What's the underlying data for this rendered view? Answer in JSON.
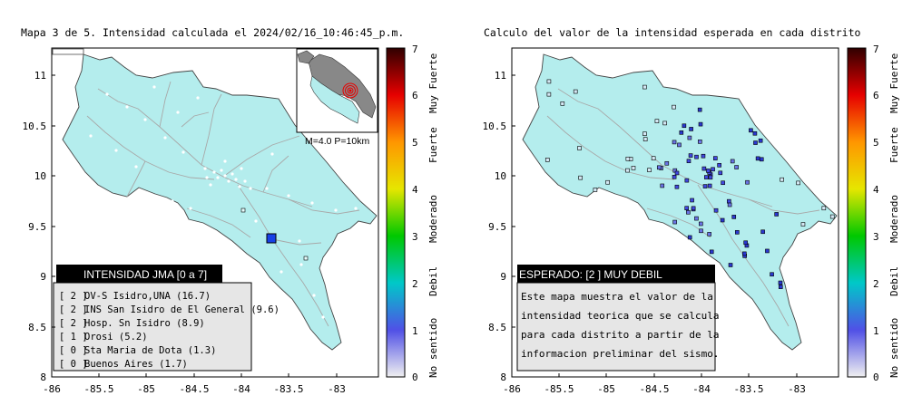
{
  "left_panel": {
    "title": "Mapa 3 de 5. Intensidad calculada el 2024/02/16_10:46:45_p.m.",
    "inset_caption": "M=4.0 P=10km",
    "legend": {
      "header": "INTENSIDAD JMA [0 a 7]",
      "rows": [
        {
          "value": "[ 2 ]",
          "station": "OV-S Isidro,UNA (16.7)"
        },
        {
          "value": "[ 2 ]",
          "station": "INS San Isidro de El General (9.6)"
        },
        {
          "value": "[ 2 ]",
          "station": "Hosp. Sn Isidro (8.9)"
        },
        {
          "value": "[ 1 ]",
          "station": "Orosi (5.2)"
        },
        {
          "value": "[ 0 ]",
          "station": "Sta Maria de Dota (1.3)"
        },
        {
          "value": "[ 0 ]",
          "station": "Buenos Aires (1.7)"
        }
      ]
    }
  },
  "right_panel": {
    "title": "Calculo del valor de la intensidad esperada en cada distrito",
    "legend": {
      "header": "ESPERADO: [2 ] MUY DEBIL",
      "lines": [
        "Este mapa muestra el valor de la",
        "intensidad teorica que se calcula",
        "para cada distrito a partir de la",
        "informacion preliminar del sismo."
      ]
    }
  },
  "axes": {
    "x_ticks": [
      "-86",
      "-85.5",
      "-85",
      "-84.5",
      "-84",
      "-83.5",
      "-83"
    ],
    "y_ticks": [
      "11",
      "10.5",
      "10",
      "9.5",
      "9",
      "8.5",
      "8"
    ]
  },
  "colorbar": {
    "ticks": [
      "7",
      "6",
      "5",
      "4",
      "3",
      "2",
      "1",
      "0"
    ],
    "labels": [
      "Muy Fuerte",
      "Fuerte",
      "Moderado",
      "Debil",
      "No sentido"
    ]
  },
  "chart_data": {
    "type": "scatter",
    "xlim": [
      -86,
      -82.6
    ],
    "ylim": [
      8,
      11.3
    ],
    "epicenter": {
      "lon": -83.65,
      "lat": 9.38
    },
    "map_fill_color": "#b4eded",
    "colorbar_colors": [
      "#f0f0f0",
      "#5050e6",
      "#00c8c8",
      "#00c800",
      "#e6e600",
      "#ff9600",
      "#e60000",
      "#300000"
    ]
  }
}
